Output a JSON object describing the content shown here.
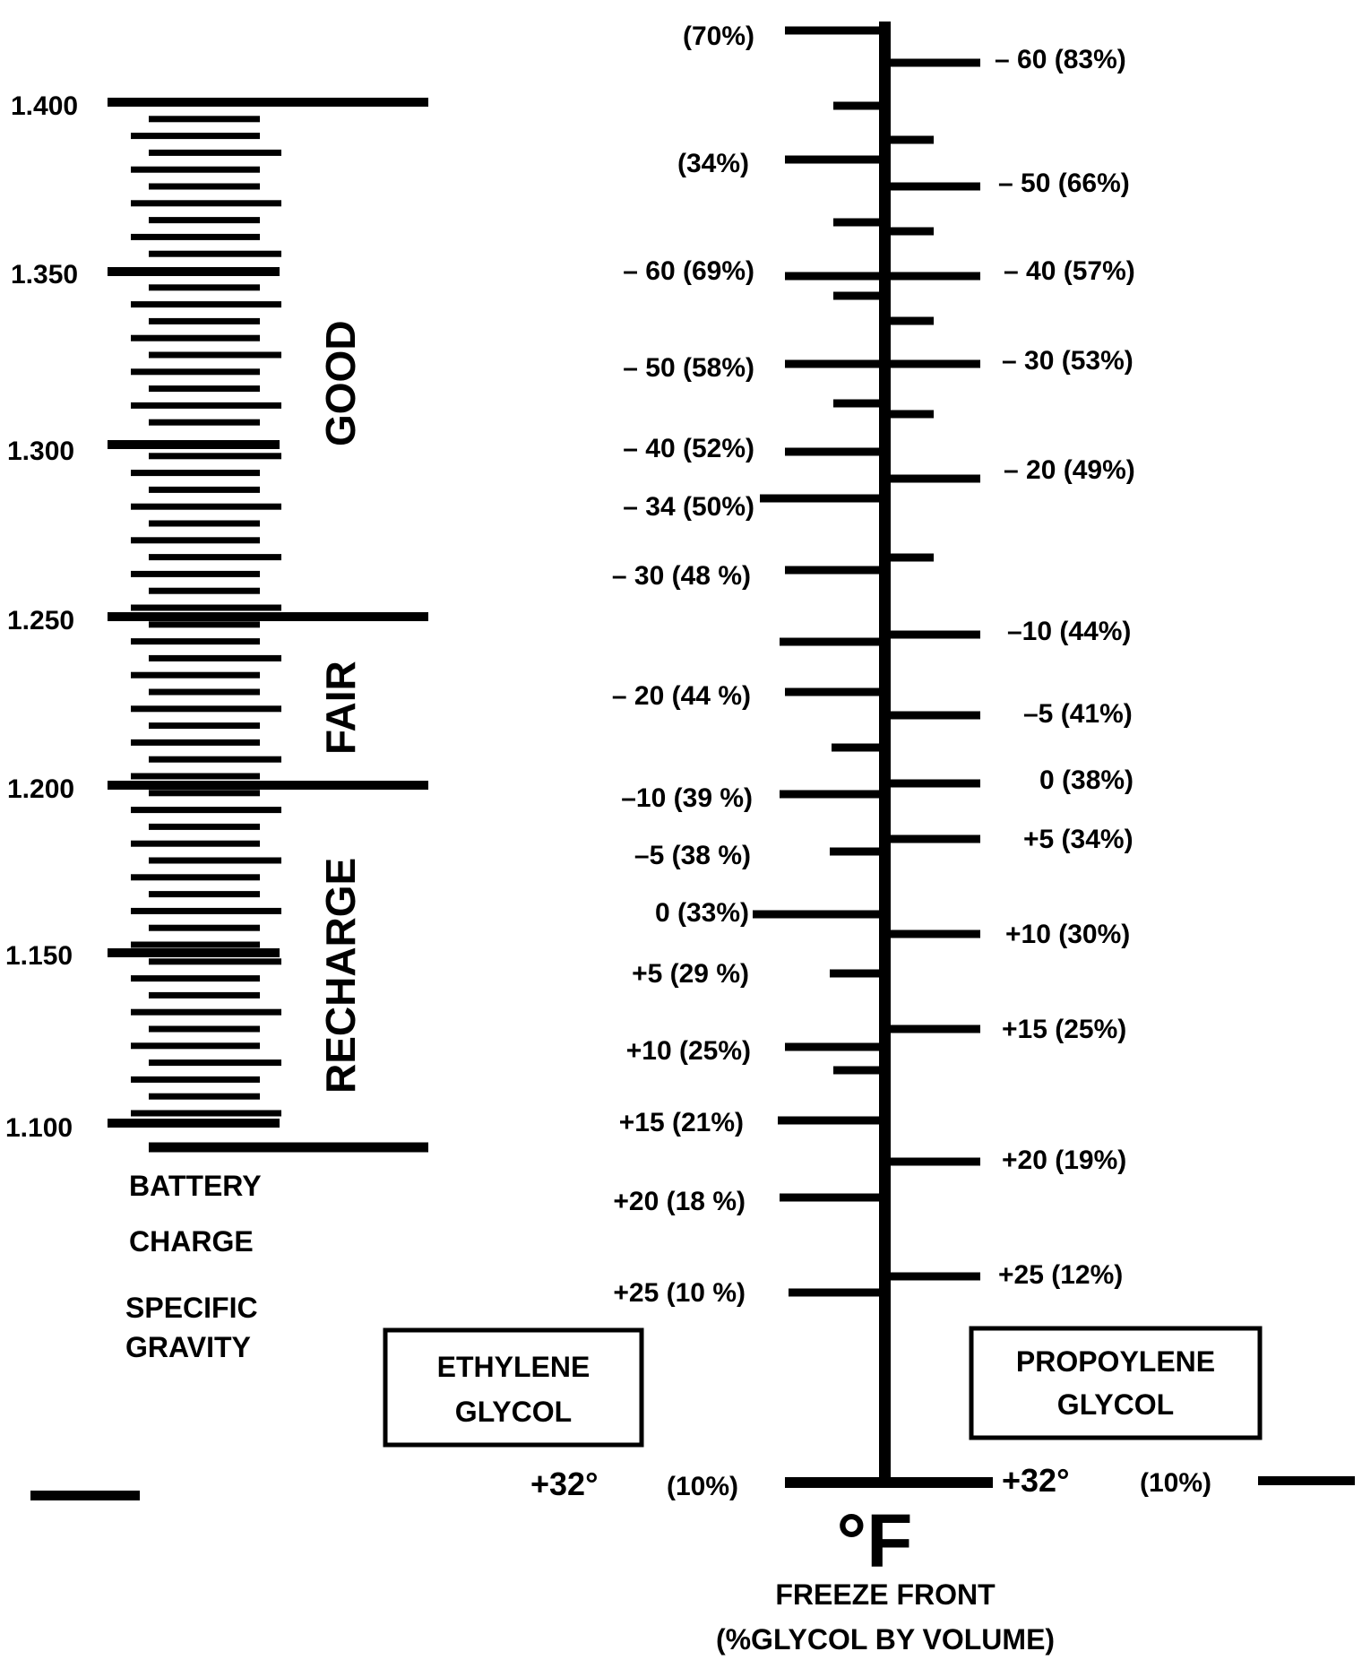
{
  "battery": {
    "gravity_labels": [
      "1.400",
      "1.350",
      "1.300",
      "1.250",
      "1.200",
      "1.150",
      "1.100"
    ],
    "zones": [
      "GOOD",
      "FAIR",
      "RECHARGE"
    ],
    "caption_line1": "BATTERY",
    "caption_line2": "CHARGE",
    "caption_line3": "SPECIFIC",
    "caption_line4": "GRAVITY"
  },
  "ethylene": {
    "box_line1": "ETHYLENE",
    "box_line2": "GLYCOL",
    "labels": [
      "(70%)",
      "(34%)",
      "– 60 (69%)",
      "– 50 (58%)",
      "– 40 (52%)",
      "– 34 (50%)",
      "– 30 (48 %)",
      "– 20 (44 %)",
      "–10 (39 %)",
      "–5 (38 %)",
      "0 (33%)",
      "+5 (29 %)",
      "+10 (25%)",
      "+15 (21%)",
      "+20 (18 %)",
      "+25 (10 %)"
    ],
    "bottom_temp": "+32°",
    "bottom_pct": "(10%)"
  },
  "propylene": {
    "box_line1": "PROPOYLENE",
    "box_line2": "GLYCOL",
    "labels": [
      "– 60 (83%)",
      "– 50 (66%)",
      "– 40 (57%)",
      "– 30 (53%)",
      "– 20 (49%)",
      "–10 (44%)",
      "–5 (41%)",
      "0 (38%)",
      "+5 (34%)",
      "+10 (30%)",
      "+15 (25%)",
      "+20 (19%)",
      "+25 (12%)"
    ],
    "bottom_temp": "+32°",
    "bottom_pct": "(10%)"
  },
  "scale": {
    "unit_symbol": "°F",
    "caption_line1": "FREEZE FRONT",
    "caption_line2": "(%GLYCOL BY VOLUME)"
  },
  "colors": {
    "ink": "#000000",
    "paper": "#ffffff"
  }
}
